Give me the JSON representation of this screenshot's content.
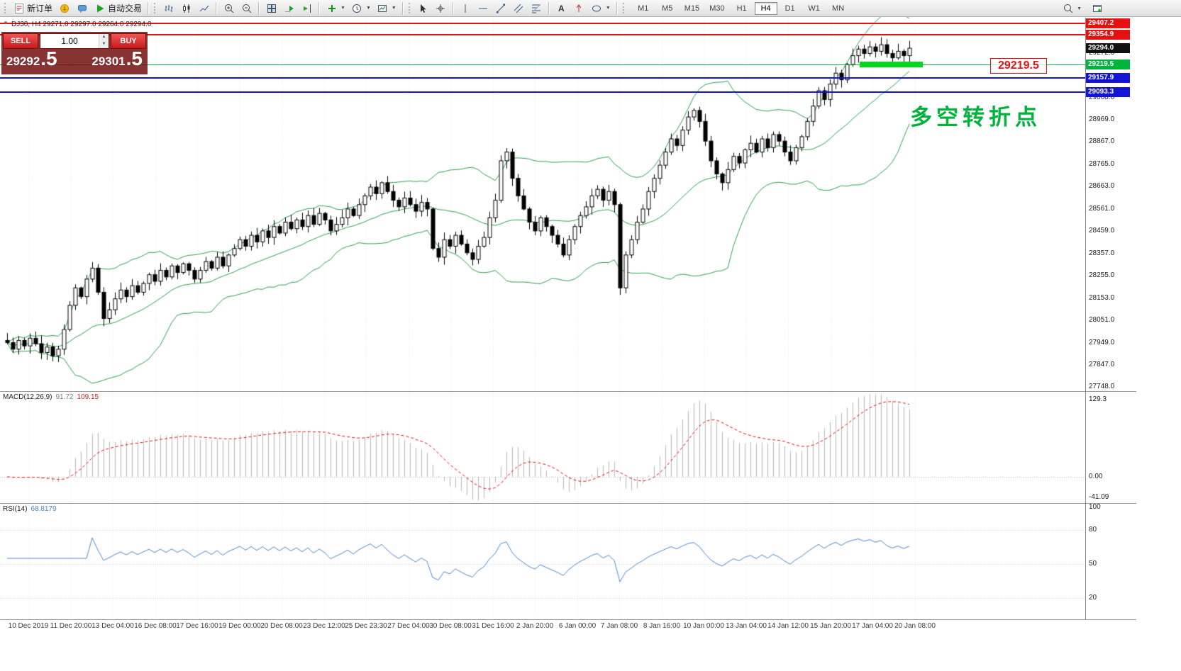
{
  "toolbar": {
    "new_order_label": "新订单",
    "auto_trading_label": "自动交易",
    "timeframes": [
      "M1",
      "M5",
      "M15",
      "M30",
      "H1",
      "H4",
      "D1",
      "W1",
      "MN"
    ],
    "active_timeframe": "H4"
  },
  "trade_panel": {
    "sell_label": "SELL",
    "buy_label": "BUY",
    "lot_value": "1.00",
    "sell_price_int": "29292",
    "sell_price_dec": ".5",
    "buy_price_int": "29301",
    "buy_price_dec": ".5"
  },
  "chart_data": {
    "type": "candlestick",
    "symbol": "DJ30",
    "timeframe": "H4",
    "title": "DJ30, H4 29271.0 29297.0 29264.0 29294.0",
    "ohlc_display": {
      "open": 29271.0,
      "high": 29297.0,
      "low": 29264.0,
      "close": 29294.0
    },
    "annotation": {
      "text": "多空转折点",
      "color": "#00b33c"
    },
    "price_flag": {
      "text": "29219.5",
      "color": "#e51111"
    },
    "price_axis": {
      "max": 29430,
      "min": 27735,
      "ticks": [
        29272.0,
        29068.0,
        28969.0,
        28867.0,
        28765.0,
        28663.0,
        28561.0,
        28459.0,
        28357.0,
        28255.0,
        28153.0,
        28051.0,
        27949.0,
        27847.0,
        27748.0
      ]
    },
    "hlines": [
      {
        "price": 29407.2,
        "color": "#e51111",
        "line": true,
        "width": 2
      },
      {
        "price": 29354.9,
        "color": "#e51111",
        "line": true,
        "width": 2
      },
      {
        "price": 29294.0,
        "color": "#111111",
        "line": false,
        "width": 1
      },
      {
        "price": 29219.5,
        "color": "#00b33c",
        "line": true,
        "width": 1
      },
      {
        "price": 29157.9,
        "color": "#1414d6",
        "line": true,
        "width": 2
      },
      {
        "price": 29093.3,
        "color": "#1414d6",
        "line": true,
        "width": 2
      }
    ],
    "highlight_segment": {
      "price": 29219.5,
      "color": "#00d91a"
    },
    "colors": {
      "up_candle": "#ffffff",
      "down_candle": "#000000",
      "candle_outline": "#000000",
      "bollinger": "#2f9e4f",
      "macd_histogram": "#b9b9b9",
      "macd_signal": "#e01010",
      "rsi_line": "#4a86c8",
      "grid": "#e6e6e6"
    },
    "candles": {
      "closes": [
        27950,
        27920,
        27960,
        27935,
        27970,
        27945,
        27905,
        27930,
        27890,
        27920,
        28010,
        28120,
        28200,
        28160,
        28240,
        28290,
        28180,
        28060,
        28100,
        28150,
        28190,
        28160,
        28210,
        28180,
        28220,
        28260,
        28230,
        28280,
        28250,
        28300,
        28270,
        28310,
        28280,
        28240,
        28280,
        28320,
        28290,
        28340,
        28300,
        28350,
        28380,
        28420,
        28390,
        28440,
        28410,
        28460,
        28430,
        28480,
        28450,
        28500,
        28470,
        28510,
        28480,
        28530,
        28490,
        28540,
        28510,
        28460,
        28490,
        28520,
        28560,
        28530,
        28580,
        28620,
        28660,
        28630,
        28680,
        28640,
        28600,
        28570,
        28610,
        28580,
        28550,
        28590,
        28560,
        28380,
        28340,
        28420,
        28390,
        28440,
        28400,
        28360,
        28330,
        28390,
        28430,
        28520,
        28600,
        28780,
        28820,
        28700,
        28620,
        28560,
        28500,
        28460,
        28520,
        28480,
        28440,
        28400,
        28350,
        28420,
        28480,
        28530,
        28570,
        28620,
        28650,
        28600,
        28640,
        28580,
        28200,
        28350,
        28420,
        28500,
        28560,
        28640,
        28700,
        28760,
        28820,
        28880,
        28850,
        28920,
        28980,
        29010,
        28960,
        28870,
        28780,
        28720,
        28680,
        28740,
        28800,
        28770,
        28830,
        28860,
        28820,
        28880,
        28840,
        28900,
        28870,
        28820,
        28780,
        28840,
        28890,
        28960,
        29030,
        29100,
        29060,
        29130,
        29180,
        29150,
        29220,
        29260,
        29290,
        29270,
        29300,
        29280,
        29310,
        29270,
        29250,
        29280,
        29260,
        29294
      ]
    },
    "indicators": {
      "macd": {
        "label": "MACD(12,26,9)",
        "value_main": "91.72",
        "value_signal": "109.15",
        "scale_labels": [
          "129.3",
          "0.00",
          "-41.09"
        ]
      },
      "rsi": {
        "label": "RSI(14)",
        "value": "68.8179",
        "scale_labels": [
          "100",
          "80",
          "50",
          "20"
        ],
        "levels": [
          80,
          50,
          20
        ]
      }
    },
    "time_axis": [
      "10 Dec 2019",
      "11 Dec 20:00",
      "13 Dec 04:00",
      "16 Dec 08:00",
      "17 Dec 16:00",
      "19 Dec 00:00",
      "20 Dec 08:00",
      "23 Dec 12:00",
      "25 Dec 23:30",
      "27 Dec 04:00",
      "30 Dec 08:00",
      "31 Dec 16:00",
      "2 Jan 20:00",
      "6 Jan 00:00",
      "7 Jan 08:00",
      "8 Jan 16:00",
      "10 Jan 00:00",
      "13 Jan 04:00",
      "14 Jan 12:00",
      "15 Jan 20:00",
      "17 Jan 04:00",
      "20 Jan 08:00"
    ]
  }
}
